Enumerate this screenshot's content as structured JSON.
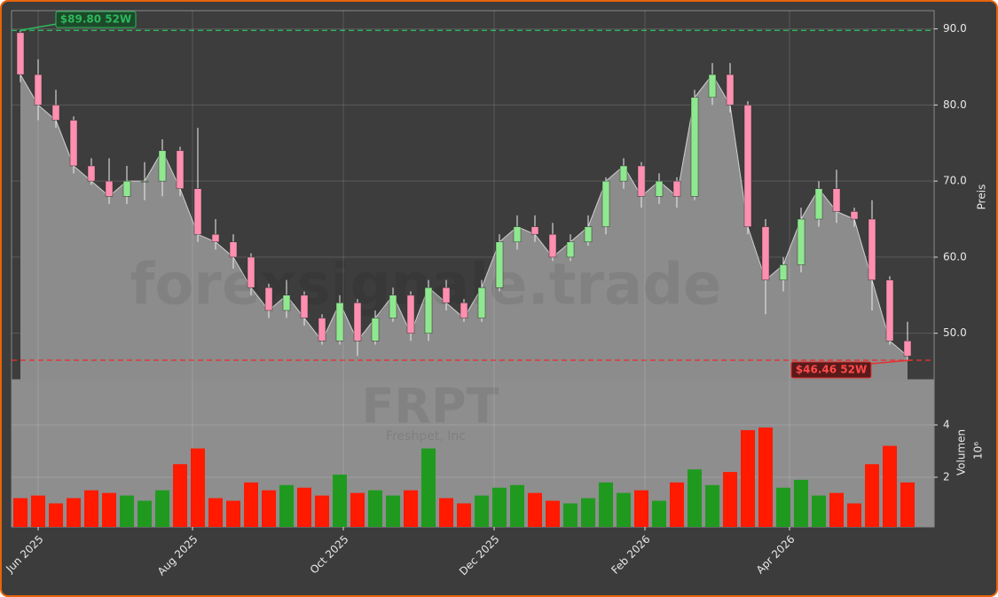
{
  "chart_data": [
    {
      "type": "candlestick",
      "watermark": "forexsignale.trade",
      "symbol": "FRPT",
      "company": "Freshpet, Inc",
      "y_label": "Preis",
      "categories": [
        null,
        null,
        null,
        null,
        null,
        null,
        null,
        null,
        null,
        null,
        null,
        null,
        null,
        null,
        null,
        null,
        null,
        null,
        null,
        null,
        null,
        null,
        null,
        null,
        null,
        null,
        null,
        null,
        null,
        null,
        null,
        null,
        null,
        null,
        null,
        null,
        null,
        null,
        null,
        null,
        null,
        null,
        null,
        null,
        null,
        null,
        null,
        null,
        null,
        null,
        null
      ],
      "open": [
        89.5,
        84,
        80,
        78,
        72,
        70,
        68,
        70,
        70,
        74,
        69,
        63,
        62,
        60,
        56,
        53,
        55,
        52,
        49,
        54,
        49,
        52,
        55,
        50,
        56,
        54,
        52,
        56,
        62,
        64,
        63,
        60,
        62,
        64,
        70,
        72,
        68,
        70,
        68,
        81,
        84,
        80,
        64,
        57,
        59,
        65,
        69,
        66,
        65,
        57,
        49
      ],
      "high": [
        89.8,
        86,
        82,
        78.5,
        73,
        73,
        72,
        72.5,
        75.5,
        74.5,
        77,
        65,
        63,
        60.5,
        56.5,
        57,
        55.5,
        52.5,
        55,
        54.5,
        53,
        56,
        55.5,
        57,
        57,
        54.5,
        57,
        63,
        65.5,
        65.5,
        64.5,
        63,
        65.5,
        70.5,
        73,
        72.5,
        71,
        70.5,
        82,
        85.5,
        85.5,
        80.5,
        65,
        60,
        66.5,
        70,
        71.5,
        66.5,
        67.5,
        57.5,
        51.5
      ],
      "low": [
        83,
        78,
        77,
        71,
        69.5,
        67,
        67,
        67.5,
        68,
        68,
        62,
        61,
        58.5,
        55,
        52,
        52,
        51,
        48.5,
        48.5,
        47,
        48.5,
        51.5,
        49,
        49,
        53,
        51.5,
        51.5,
        55.5,
        61,
        62,
        59.5,
        59.5,
        61.5,
        63,
        69,
        66.5,
        67,
        66.5,
        67.5,
        80,
        79,
        63,
        52.5,
        55.5,
        58,
        64,
        64.5,
        64,
        53,
        48.5,
        46.5
      ],
      "close": [
        84,
        80,
        78,
        72,
        70,
        68,
        70,
        70,
        74,
        69,
        63,
        62,
        60,
        56,
        53,
        55,
        52,
        49,
        54,
        49,
        52,
        55,
        50,
        56,
        54,
        52,
        56,
        62,
        64,
        63,
        60,
        62,
        64,
        70,
        72,
        68,
        70,
        68,
        81,
        84,
        80,
        64,
        57,
        59,
        65,
        69,
        66,
        65,
        57,
        49,
        47
      ],
      "up_color": "#8fe88f",
      "down_color": "#ff8fb0",
      "high_52w": {
        "value": 89.8,
        "label": "$89.80 52W",
        "color": "#2eb85c"
      },
      "low_52w": {
        "value": 46.46,
        "label": "$46.46 52W",
        "color": "#e83030"
      },
      "xlim": [
        0,
        52
      ],
      "ylim": [
        43.9,
        92.4
      ],
      "yticks": [
        {
          "value": 50,
          "label": "50.0"
        },
        {
          "value": 60,
          "label": "60.0"
        },
        {
          "value": 70,
          "label": "70.0"
        },
        {
          "value": 80,
          "label": "80.0"
        },
        {
          "value": 90,
          "label": "90.0"
        }
      ],
      "grid": true
    },
    {
      "type": "bar",
      "y_label": "Volumen",
      "y_unit": "10⁶",
      "values": [
        1.2,
        1.3,
        1.0,
        1.2,
        1.5,
        1.4,
        1.3,
        1.1,
        1.5,
        2.5,
        3.1,
        1.2,
        1.1,
        1.8,
        1.5,
        1.7,
        1.6,
        1.3,
        2.1,
        1.4,
        1.5,
        1.3,
        1.5,
        3.1,
        1.2,
        1.0,
        1.3,
        1.6,
        1.7,
        1.4,
        1.1,
        1.0,
        1.2,
        1.8,
        1.4,
        1.5,
        1.1,
        1.8,
        2.3,
        1.7,
        2.2,
        3.8,
        3.9,
        1.6,
        1.9,
        1.3,
        1.4,
        1.0,
        2.5,
        3.2,
        1.8
      ],
      "up_color": "#1f9a1f",
      "down_color": "#ff1a00",
      "xlim": [
        0,
        52
      ],
      "ylim": [
        0.1,
        5.73
      ],
      "yticks": [
        2,
        4
      ],
      "xticks": [
        {
          "value": 1.5,
          "label": "Jun 2025"
        },
        {
          "value": 10.2,
          "label": "Aug 2025"
        },
        {
          "value": 18.7,
          "label": "Oct 2025"
        },
        {
          "value": 27.2,
          "label": "Dec 2025"
        },
        {
          "value": 35.7,
          "label": "Feb 2026"
        },
        {
          "value": 43.85,
          "label": "Apr 2026"
        }
      ],
      "grid": true
    }
  ]
}
